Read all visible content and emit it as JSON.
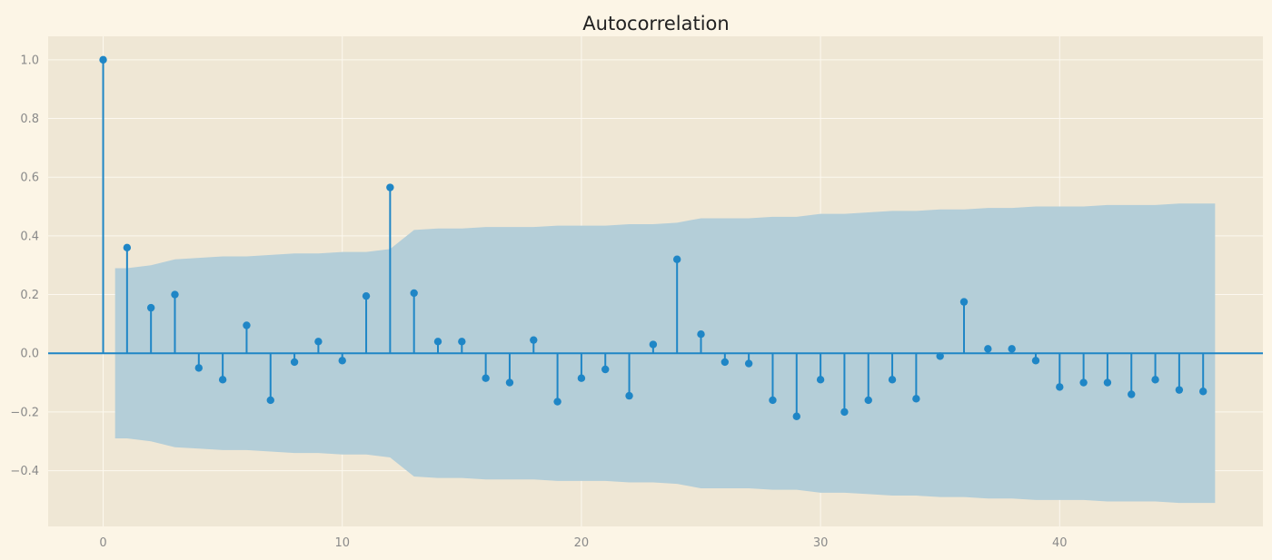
{
  "chart_data": {
    "type": "stem",
    "title": "Autocorrelation",
    "xlabel": "",
    "ylabel": "",
    "xlim": [
      -2.3,
      48.5
    ],
    "ylim": [
      -0.59,
      1.08
    ],
    "x_ticks": [
      0,
      10,
      20,
      30,
      40
    ],
    "x_tick_labels": [
      "0",
      "10",
      "20",
      "30",
      "40"
    ],
    "y_ticks": [
      1.0,
      0.8,
      0.6,
      0.4,
      0.2,
      0.0,
      -0.2,
      -0.4
    ],
    "y_tick_labels": [
      "1.0",
      "0.8",
      "0.6",
      "0.4",
      "0.2",
      "0.0",
      "−0.2",
      "−0.4"
    ],
    "grid": true,
    "lags": [
      0,
      1,
      2,
      3,
      4,
      5,
      6,
      7,
      8,
      9,
      10,
      11,
      12,
      13,
      14,
      15,
      16,
      17,
      18,
      19,
      20,
      21,
      22,
      23,
      24,
      25,
      26,
      27,
      28,
      29,
      30,
      31,
      32,
      33,
      34,
      35,
      36,
      37,
      38,
      39,
      40,
      41,
      42,
      43,
      44,
      45,
      46
    ],
    "acf": [
      1.0,
      0.36,
      0.155,
      0.2,
      -0.05,
      -0.09,
      0.095,
      -0.16,
      -0.03,
      0.04,
      -0.025,
      0.195,
      0.565,
      0.205,
      0.04,
      0.04,
      -0.085,
      -0.1,
      0.045,
      -0.165,
      -0.085,
      -0.055,
      -0.145,
      0.03,
      0.32,
      0.065,
      -0.03,
      -0.035,
      -0.16,
      -0.215,
      -0.09,
      -0.2,
      -0.16,
      -0.09,
      -0.155,
      -0.01,
      0.175,
      0.015,
      0.015,
      -0.025,
      -0.115,
      -0.1,
      -0.1,
      -0.14,
      -0.09,
      -0.125,
      -0.13
    ],
    "confint_upper": [
      null,
      0.29,
      0.3,
      0.32,
      0.325,
      0.33,
      0.33,
      0.335,
      0.34,
      0.34,
      0.345,
      0.345,
      0.355,
      0.42,
      0.425,
      0.425,
      0.43,
      0.43,
      0.43,
      0.435,
      0.435,
      0.435,
      0.44,
      0.44,
      0.445,
      0.46,
      0.46,
      0.46,
      0.465,
      0.465,
      0.475,
      0.475,
      0.48,
      0.485,
      0.485,
      0.49,
      0.49,
      0.495,
      0.495,
      0.5,
      0.5,
      0.5,
      0.505,
      0.505,
      0.505,
      0.51,
      0.51
    ],
    "colors": {
      "stem": "#1f86c6",
      "band": "#b4ced8",
      "plot_bg": "#efe7d5",
      "figure_bg": "#fcf5e6",
      "grid": "#fcf8ef",
      "zero_line": "#1f86c6"
    }
  }
}
